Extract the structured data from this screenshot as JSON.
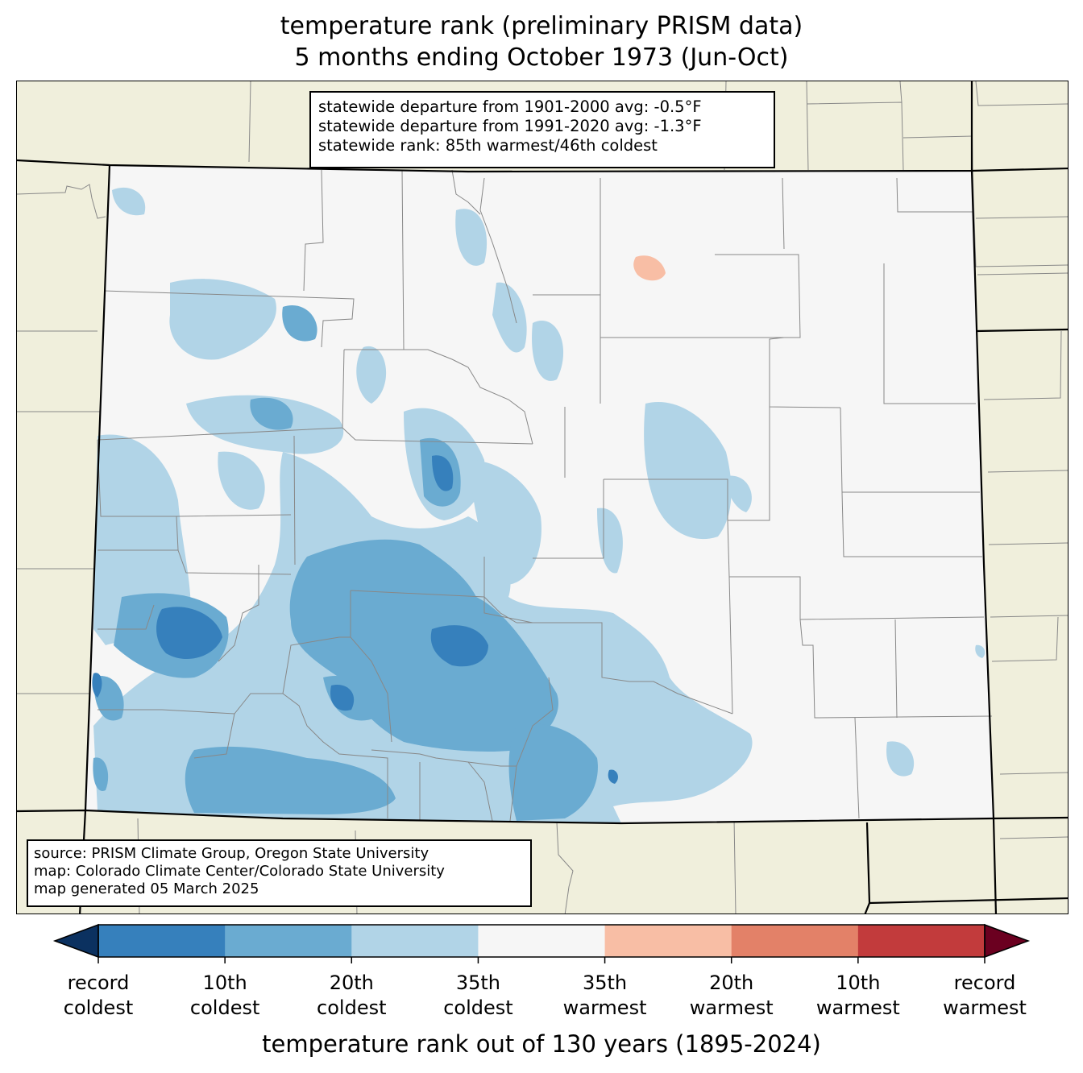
{
  "title_line1": "temperature rank (preliminary PRISM data)",
  "title_line2": "5 months ending October 1973 (Jun-Oct)",
  "stats": {
    "line1": "statewide departure from 1901-2000 avg: -0.5°F",
    "line2": "statewide departure from 1991-2020 avg: -1.3°F",
    "line3": "statewide rank: 85th warmest/46th coldest"
  },
  "source": {
    "line1": "source: PRISM Climate Group, Oregon State University",
    "line2": "map: Colorado Climate Center/Colorado State University",
    "line3": "map generated 05 March 2025"
  },
  "colorbar": {
    "title": "temperature rank out of 130 years (1895-2024)",
    "bins": [
      {
        "color": "#3680bc"
      },
      {
        "color": "#6aabd1"
      },
      {
        "color": "#b1d4e7"
      },
      {
        "color": "#f6f6f6"
      },
      {
        "color": "#f8bea5"
      },
      {
        "color": "#e38168"
      },
      {
        "color": "#c23b3c"
      }
    ],
    "under_color": "#0b3160",
    "over_color": "#6b0020",
    "ticks": [
      {
        "line1": "record",
        "line2": "coldest"
      },
      {
        "line1": "10th",
        "line2": "coldest"
      },
      {
        "line1": "20th",
        "line2": "coldest"
      },
      {
        "line1": "35th",
        "line2": "coldest"
      },
      {
        "line1": "35th",
        "line2": "warmest"
      },
      {
        "line1": "20th",
        "line2": "warmest"
      },
      {
        "line1": "10th",
        "line2": "warmest"
      },
      {
        "line1": "record",
        "line2": "warmest"
      }
    ]
  },
  "colors": {
    "neighbor_land": "#f0efdc",
    "state_fill": "#f6f6f6",
    "county_lines": "#888888",
    "cool_light": "#b1d4e7",
    "cool_mid": "#6aabd1",
    "cool_dark": "#3680bc",
    "warm_light": "#f8bea5"
  }
}
